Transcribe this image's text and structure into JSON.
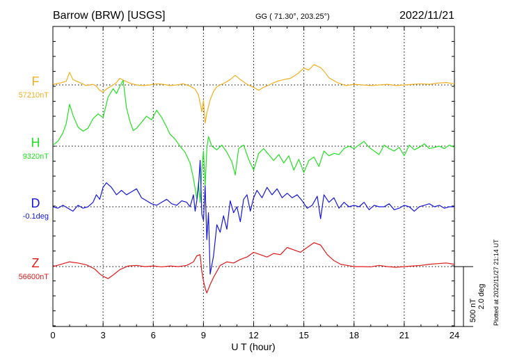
{
  "header": {
    "station": "Barrow (BRW)  [USGS]",
    "coords": "GG ( 71.30°, 203.25°)",
    "date": "2022/11/21"
  },
  "footer": {
    "plotted_note": "Plotted at 2022/11/27 21:14 UT"
  },
  "chart_data": {
    "type": "line",
    "title": "",
    "xlabel": "U T (hour)",
    "ylabel": "",
    "xlim": [
      0,
      24
    ],
    "xticks": [
      0,
      3,
      6,
      9,
      12,
      15,
      18,
      21,
      24
    ],
    "grid": true,
    "scale_bar": {
      "label_nt": "500 nT",
      "label_deg": "2.0 deg",
      "value_nt": 500,
      "value_deg": 2.0
    },
    "series": [
      {
        "name": "F",
        "baseline_label": "57210nT",
        "baseline": 57210,
        "unit": "nT",
        "color": "#f0b020",
        "x": [
          0,
          0.4,
          0.8,
          1.0,
          1.2,
          1.6,
          2.0,
          2.4,
          2.6,
          2.8,
          3.0,
          3.2,
          3.6,
          3.8,
          4.0,
          4.2,
          4.6,
          5.0,
          5.4,
          5.8,
          6.2,
          6.6,
          7.0,
          7.4,
          7.8,
          8.2,
          8.5,
          8.7,
          8.8,
          8.9,
          9.0,
          9.1,
          9.2,
          9.4,
          9.6,
          9.8,
          10.0,
          10.3,
          10.6,
          10.9,
          11.2,
          11.6,
          12.0,
          12.3,
          12.6,
          13.0,
          13.4,
          13.8,
          14.2,
          14.6,
          15.0,
          15.3,
          15.6,
          16.0,
          16.2,
          16.5,
          17.0,
          17.5,
          18.0,
          18.5,
          19.0,
          19.5,
          20.0,
          20.5,
          21.0,
          21.5,
          22.0,
          22.5,
          23.0,
          23.5,
          24.0
        ],
        "y": [
          57215,
          57225,
          57240,
          57315,
          57255,
          57230,
          57205,
          57215,
          57200,
          57165,
          57150,
          57175,
          57210,
          57230,
          57265,
          57250,
          57225,
          57210,
          57205,
          57210,
          57220,
          57215,
          57205,
          57210,
          57220,
          57200,
          57175,
          57125,
          57060,
          56985,
          57080,
          56890,
          56975,
          57085,
          57155,
          57195,
          57210,
          57230,
          57255,
          57290,
          57255,
          57215,
          57190,
          57165,
          57190,
          57215,
          57240,
          57255,
          57265,
          57300,
          57350,
          57335,
          57380,
          57355,
          57325,
          57270,
          57230,
          57205,
          57215,
          57210,
          57205,
          57210,
          57215,
          57205,
          57210,
          57215,
          57220,
          57215,
          57225,
          57230,
          57220
        ]
      },
      {
        "name": "H",
        "baseline_label": "9320nT",
        "baseline": 9320,
        "unit": "nT",
        "color": "#22e022",
        "x": [
          0,
          0.3,
          0.6,
          0.8,
          1.0,
          1.2,
          1.5,
          1.8,
          2.1,
          2.4,
          2.7,
          3.0,
          3.3,
          3.6,
          3.8,
          4.0,
          4.2,
          4.4,
          4.6,
          4.8,
          5.0,
          5.3,
          5.6,
          5.9,
          6.2,
          6.5,
          6.8,
          7.0,
          7.3,
          7.6,
          7.9,
          8.2,
          8.4,
          8.6,
          8.7,
          8.8,
          8.9,
          9.0,
          9.1,
          9.2,
          9.3,
          9.5,
          9.8,
          10.1,
          10.4,
          10.7,
          10.9,
          11.1,
          11.4,
          11.7,
          12.0,
          12.3,
          12.6,
          12.9,
          13.2,
          13.5,
          13.8,
          14.1,
          14.4,
          14.7,
          15.0,
          15.3,
          15.6,
          15.9,
          16.2,
          16.5,
          16.8,
          17.1,
          17.4,
          17.7,
          18.0,
          18.3,
          18.6,
          18.9,
          19.2,
          19.5,
          19.8,
          20.1,
          20.4,
          20.7,
          21.0,
          21.3,
          21.6,
          21.9,
          22.2,
          22.5,
          22.8,
          23.1,
          23.4,
          23.7,
          24.0
        ],
        "y": [
          9330,
          9360,
          9430,
          9510,
          9670,
          9580,
          9480,
          9445,
          9470,
          9550,
          9590,
          9560,
          9730,
          9800,
          9760,
          9820,
          9870,
          9640,
          9530,
          9450,
          9470,
          9520,
          9570,
          9540,
          9620,
          9560,
          9480,
          9420,
          9380,
          9320,
          9270,
          9180,
          9050,
          8880,
          9020,
          8850,
          9120,
          9280,
          8990,
          9300,
          9400,
          9320,
          9290,
          9330,
          9270,
          9190,
          9080,
          9300,
          9330,
          9210,
          9120,
          9260,
          9300,
          9250,
          9200,
          9250,
          9180,
          9240,
          9120,
          9210,
          9100,
          9200,
          9230,
          9150,
          9280,
          9240,
          9260,
          9250,
          9300,
          9320,
          9300,
          9330,
          9360,
          9310,
          9280,
          9250,
          9330,
          9300,
          9280,
          9310,
          9240,
          9330,
          9290,
          9310,
          9340,
          9300,
          9310,
          9320,
          9300,
          9330,
          9310
        ]
      },
      {
        "name": "D",
        "baseline_label": "-0.1deg",
        "baseline": -0.1,
        "unit": "deg",
        "color": "#1515e0",
        "x": [
          0,
          0.3,
          0.6,
          0.9,
          1.2,
          1.5,
          1.8,
          2.1,
          2.4,
          2.6,
          2.8,
          3.0,
          3.2,
          3.5,
          3.8,
          4.1,
          4.4,
          4.7,
          5.0,
          5.3,
          5.6,
          5.9,
          6.2,
          6.5,
          6.8,
          7.1,
          7.4,
          7.7,
          8.0,
          8.2,
          8.4,
          8.5,
          8.6,
          8.7,
          8.8,
          8.9,
          9.0,
          9.1,
          9.2,
          9.3,
          9.4,
          9.6,
          9.8,
          10.0,
          10.2,
          10.4,
          10.6,
          10.8,
          11.0,
          11.2,
          11.4,
          11.6,
          11.8,
          12.0,
          12.2,
          12.5,
          12.8,
          13.1,
          13.4,
          13.7,
          14.0,
          14.3,
          14.6,
          14.9,
          15.2,
          15.5,
          15.8,
          16.0,
          16.2,
          16.5,
          16.8,
          17.1,
          17.4,
          17.7,
          18.0,
          18.3,
          18.6,
          18.9,
          19.2,
          19.5,
          19.8,
          20.1,
          20.4,
          20.7,
          21.0,
          21.3,
          21.6,
          21.9,
          22.2,
          22.5,
          22.8,
          23.1,
          23.4,
          23.7,
          24.0
        ],
        "y": [
          -0.1,
          -0.15,
          -0.05,
          -0.15,
          -0.25,
          -0.05,
          -0.15,
          -0.1,
          0.05,
          0.3,
          0.15,
          0.55,
          0.7,
          0.55,
          0.3,
          0.45,
          0.3,
          0.4,
          0.5,
          0.2,
          0.1,
          0.0,
          -0.05,
          0.05,
          0.15,
          0.0,
          -0.05,
          0.1,
          0.05,
          -0.1,
          0.3,
          -0.25,
          0.1,
          0.55,
          1.45,
          -0.35,
          -0.55,
          0.6,
          -1.2,
          -0.3,
          -2.35,
          -1.75,
          -0.7,
          -0.95,
          -0.4,
          -0.85,
          0.1,
          -0.3,
          -0.1,
          -0.6,
          0.15,
          0.3,
          -0.25,
          0.2,
          0.45,
          0.2,
          0.55,
          0.3,
          0.5,
          0.2,
          0.35,
          0.2,
          0.3,
          0.1,
          -0.15,
          -0.05,
          0.25,
          -0.5,
          0.3,
          0.05,
          0.2,
          -0.15,
          0.05,
          -0.1,
          -0.05,
          -0.1,
          0.05,
          -0.2,
          -0.05,
          -0.1,
          -0.1,
          0.0,
          -0.2,
          -0.15,
          -0.05,
          -0.1,
          -0.25,
          -0.1,
          -0.05,
          0.0,
          -0.1,
          -0.05,
          -0.15,
          -0.1,
          -0.1
        ]
      },
      {
        "name": "Z",
        "baseline_label": "56600nT",
        "baseline": 56600,
        "unit": "nT",
        "color": "#e01818",
        "x": [
          0,
          0.5,
          1.0,
          1.5,
          2.0,
          2.5,
          2.8,
          3.0,
          3.3,
          3.6,
          4.0,
          4.5,
          5.0,
          5.5,
          6.0,
          6.5,
          7.0,
          7.5,
          8.0,
          8.4,
          8.6,
          8.8,
          8.9,
          9.0,
          9.1,
          9.2,
          9.4,
          9.6,
          9.8,
          10.0,
          10.4,
          10.8,
          11.2,
          11.6,
          12.0,
          12.4,
          12.8,
          13.2,
          13.6,
          14.0,
          14.4,
          14.8,
          15.2,
          15.6,
          16.0,
          16.4,
          16.8,
          17.2,
          17.6,
          18.0,
          18.5,
          19.0,
          19.5,
          20.0,
          20.5,
          21.0,
          21.5,
          22.0,
          22.5,
          23.0,
          23.5,
          24.0
        ],
        "y": [
          56600,
          56620,
          56640,
          56630,
          56615,
          56580,
          56540,
          56520,
          56500,
          56530,
          56575,
          56605,
          56610,
          56600,
          56605,
          56598,
          56605,
          56600,
          56610,
          56640,
          56690,
          56700,
          56560,
          56480,
          56420,
          56380,
          56450,
          56510,
          56560,
          56610,
          56640,
          56630,
          56660,
          56680,
          56720,
          56700,
          56680,
          56710,
          56700,
          56760,
          56740,
          56720,
          56760,
          56800,
          56780,
          56700,
          56650,
          56620,
          56610,
          56600,
          56600,
          56598,
          56610,
          56600,
          56595,
          56600,
          56605,
          56610,
          56620,
          56625,
          56630,
          56620
        ]
      }
    ]
  }
}
